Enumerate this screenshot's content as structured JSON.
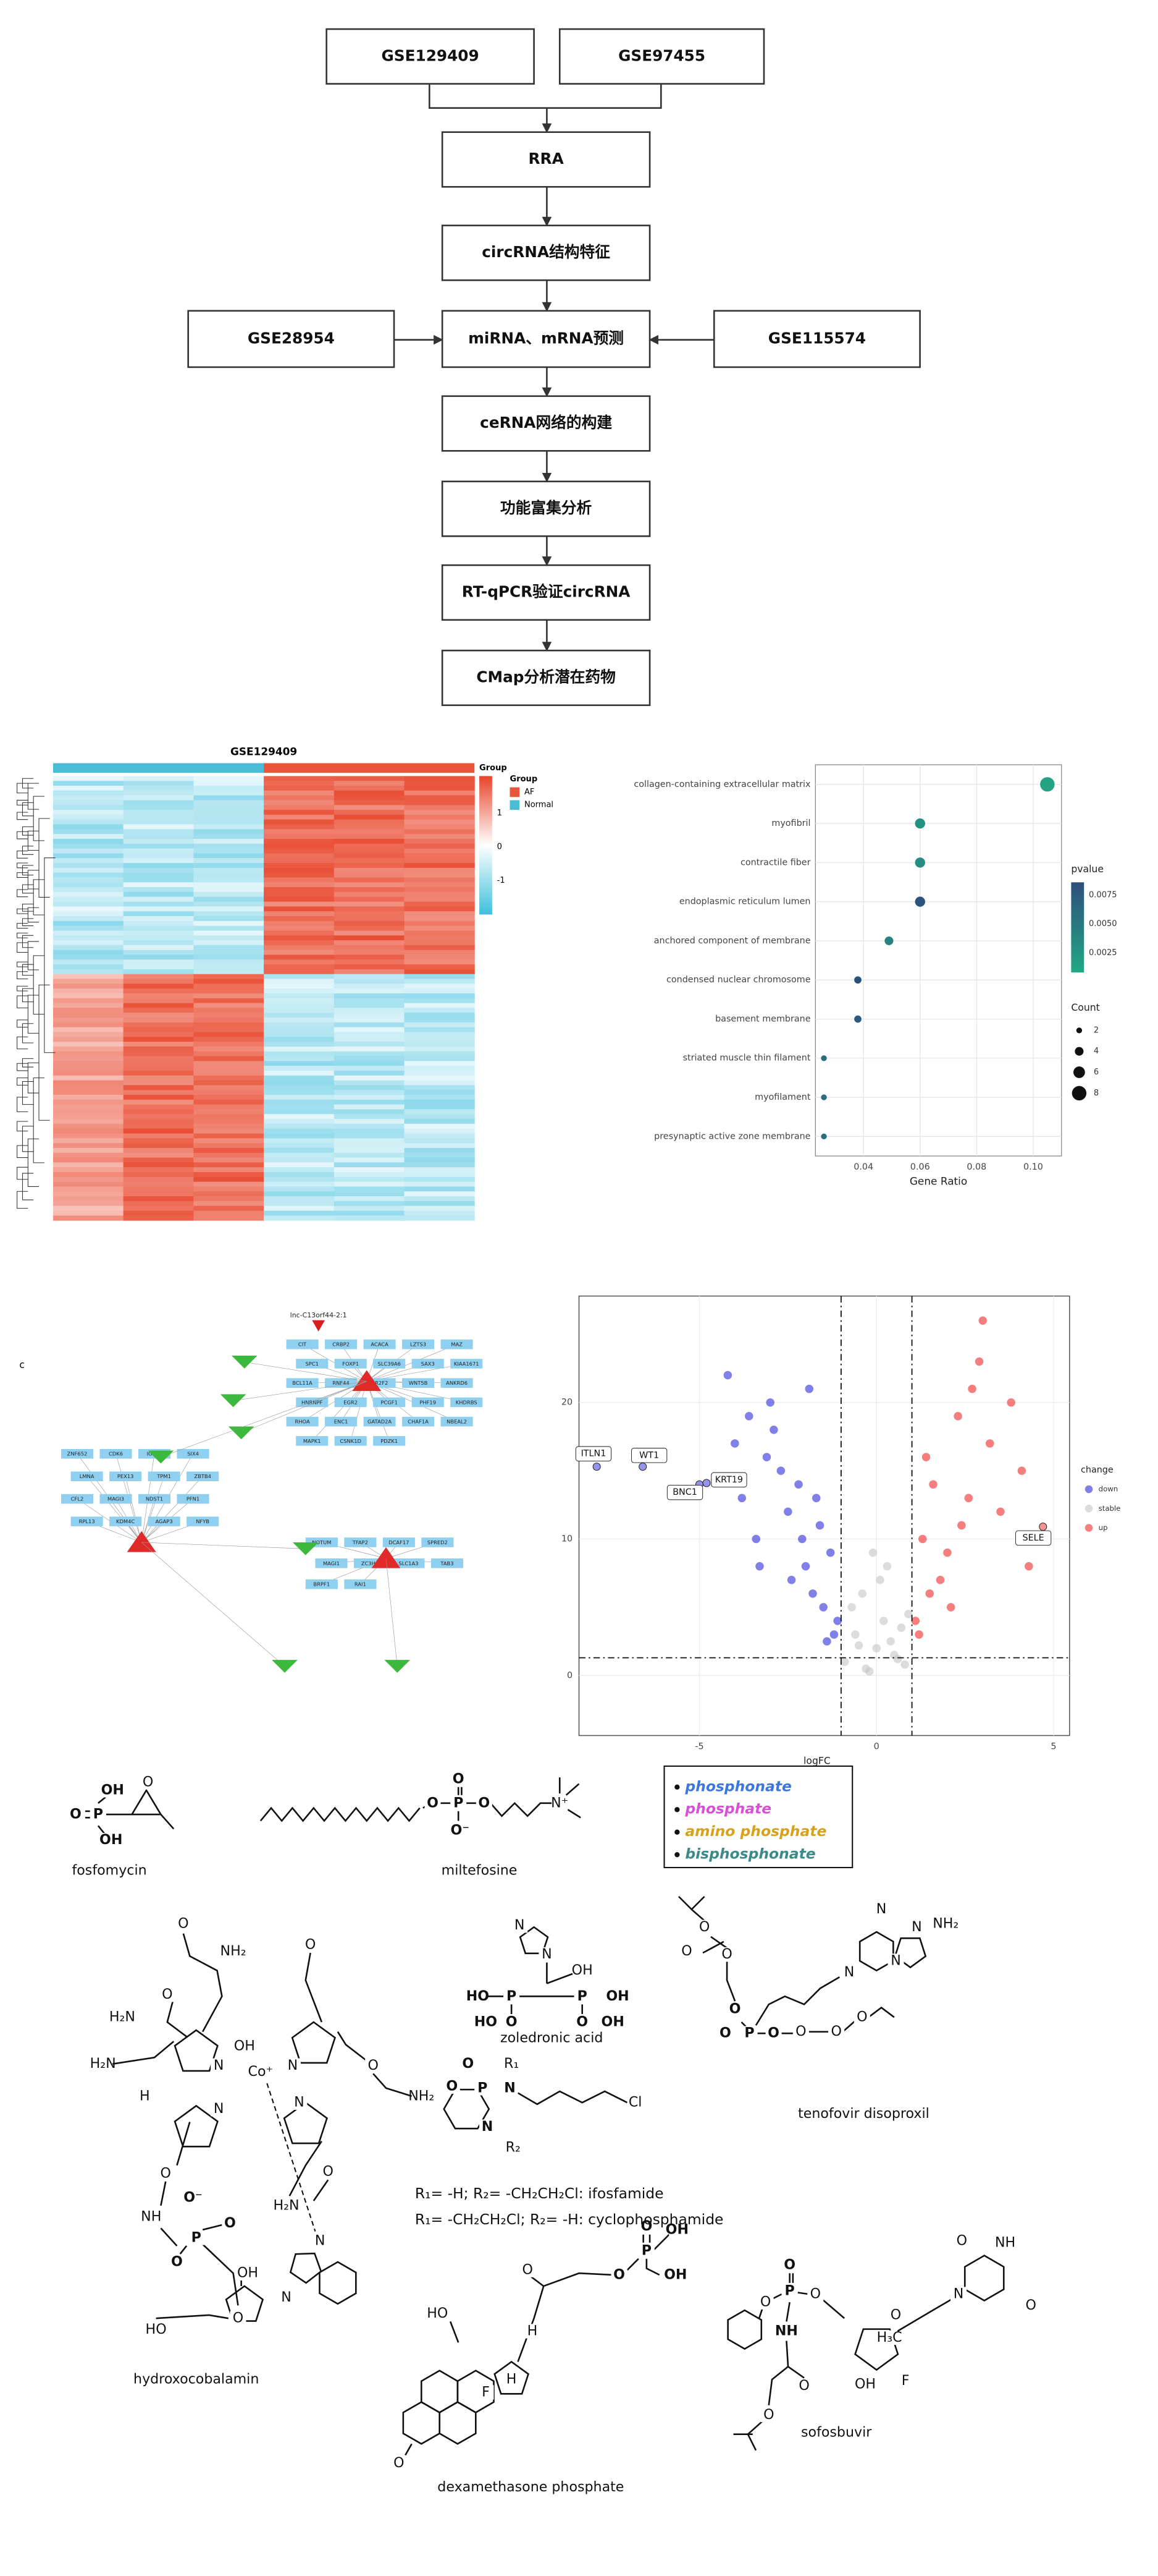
{
  "flowchart": {
    "nodes": [
      "GSE129409",
      "GSE97455",
      "RRA",
      "circRNA结构特征",
      "GSE28954",
      "miRNA、mRNA预测",
      "GSE115574",
      "ceRNA网络的构建",
      "功能富集分析",
      "RT-qPCR验证circRNA",
      "CMap分析潜在药物"
    ]
  },
  "heatmap": {
    "title": "GSE129409",
    "annotation_label": "Group",
    "legend_title": "Group",
    "groups": [
      {
        "name": "AF",
        "color": "#e8553a"
      },
      {
        "name": "Normal",
        "color": "#4bbcd6"
      }
    ],
    "scale_ticks": [
      1,
      0,
      -1
    ],
    "scale_lim": [
      -2,
      2.1
    ]
  },
  "chart_data": [
    {
      "type": "dot",
      "categories": [
        "collagen-containing extracellular matrix",
        "myofibril",
        "contractile fiber",
        "endoplasmic reticulum lumen",
        "anchored component of membrane",
        "condensed nuclear chromosome",
        "basement membrane",
        "striated muscle thin filament",
        "myofilament",
        "presynaptic active zone membrane"
      ],
      "values": [
        0.105,
        0.06,
        0.06,
        0.06,
        0.049,
        0.038,
        0.038,
        0.026,
        0.026,
        0.026
      ],
      "counts": [
        8,
        5,
        5,
        5,
        4,
        3,
        3,
        2,
        2,
        2
      ],
      "pvalues": [
        0.0012,
        0.0028,
        0.0032,
        0.0082,
        0.004,
        0.0085,
        0.0078,
        0.006,
        0.006,
        0.006
      ],
      "xlim": [
        0.023,
        0.11
      ],
      "xticks": [
        0.04,
        0.06,
        0.08,
        {
          "value": 0.1,
          "label": "0.10"
        }
      ],
      "x_label": "Gene Ratio",
      "grid": true,
      "color_legend_title": "pvalue",
      "color_ticks": [
        0.0075,
        {
          "value": 0.005,
          "label": "0.0050"
        },
        0.0025
      ],
      "pvalue_lim": [
        0.0008,
        0.0086
      ],
      "color_low": "#22a884",
      "color_high": "#2c4f7c",
      "size_legend_title": "Count",
      "size_ticks": [
        2,
        4,
        6,
        8
      ]
    },
    {
      "type": "scatter",
      "x_label": "logFC",
      "legend_title": "change",
      "xlim": [
        -8.4,
        5.45
      ],
      "xticks": [
        -5,
        0,
        5
      ],
      "ylim": [
        -4.4,
        27.8
      ],
      "yticks": [
        0,
        10,
        20
      ],
      "grid": true,
      "vlines": [
        -1,
        1
      ],
      "hline": 1.3,
      "series": [
        {
          "name": "down",
          "color": "#2b2bd9",
          "x": [
            -1.2,
            -1.5,
            -2.0,
            -2.5,
            -3.1,
            -3.6,
            -4.2,
            -1.3,
            -1.8,
            -2.2,
            -2.9,
            -3.4,
            -1.1,
            -1.6,
            -2.4,
            -3.0,
            -4.0,
            -3.8,
            -2.7,
            -1.9,
            -1.4,
            -2.1,
            -1.7,
            -3.3
          ],
          "values": [
            3,
            5,
            8,
            12,
            16,
            19,
            22,
            9,
            6,
            14,
            18,
            10,
            4,
            11,
            7,
            20,
            17,
            13,
            15,
            21,
            2.5,
            10,
            13,
            8
          ]
        },
        {
          "name": "stable",
          "color": "#c4c4c4",
          "x": [
            -0.9,
            -0.6,
            -0.3,
            0,
            0.2,
            0.5,
            0.8,
            -0.7,
            -0.4,
            0.1,
            0.4,
            0.7,
            -0.2,
            0.3,
            0.6,
            -0.5,
            0.9,
            -0.1
          ],
          "values": [
            1,
            3,
            0.5,
            2,
            4,
            1.5,
            0.8,
            5,
            6,
            7,
            2.5,
            3.5,
            0.3,
            8,
            1.2,
            2.2,
            4.5,
            9
          ]
        },
        {
          "name": "up",
          "color": "#ee2a2a",
          "x": [
            1.2,
            1.5,
            2.0,
            2.6,
            3.2,
            3.8,
            4.1,
            1.3,
            1.8,
            2.3,
            2.9,
            3.5,
            1.1,
            1.6,
            2.4,
            3.0,
            4.3,
            1.4,
            2.1,
            2.7
          ],
          "values": [
            3,
            6,
            9,
            13,
            17,
            20,
            15,
            10,
            7,
            19,
            23,
            12,
            4,
            14,
            11,
            26,
            8,
            16,
            5,
            21
          ]
        }
      ],
      "labels": [
        {
          "label": "ITLN1",
          "x": -7.9,
          "y": 15.3
        },
        {
          "label": "WT1",
          "x": -6.6,
          "y": 15.3
        },
        {
          "label": "BNC1",
          "x": -5.0,
          "y": 14.0
        },
        {
          "label": "KRT19",
          "x": -4.8,
          "y": 14.1
        },
        {
          "label": "SELE",
          "x": 4.7,
          "y": 10.9
        }
      ]
    }
  ],
  "network": {
    "panel_label": "c",
    "top_label": "lnc-C13orf44-2:1",
    "clusters": [
      {
        "genes": [
          "CIT",
          "CRBP2",
          "ACACA",
          "LZTS3",
          "MAZ",
          "SPC1",
          "FOXP1",
          "SLC39A6",
          "SAX3",
          "KIAA1671",
          "BCL11A",
          "RNF44",
          "NR2F2",
          "WNT5B",
          "ANKRD6",
          "HNRNPF",
          "EGR2",
          "PCGF1",
          "PHF19",
          "KHDRBS",
          "RHOA",
          "ENC1",
          "GATAD2A",
          "CHAF1A",
          "NBEAL2",
          "MAPK1",
          "CSNK1D",
          "PDZK1"
        ]
      },
      {
        "genes": [
          "ZNF652",
          "CDK6",
          "IGF1R",
          "SIX4",
          "LMNA",
          "PEX13",
          "TPM1",
          "ZBTB4",
          "CFL2",
          "MAGI3",
          "NDST1",
          "PFN1",
          "RPL13",
          "KDM4C",
          "AGAP3",
          "NFYB"
        ]
      },
      {
        "genes": [
          "NOTUM",
          "TFAP2",
          "DCAF17",
          "SPRED2",
          "MAGI1",
          "ZC3H4",
          "SLC1A3",
          "TAB3",
          "BRPF1",
          "RAI1"
        ]
      }
    ]
  },
  "chemistry": {
    "legend": [
      {
        "text": "phosphonate",
        "color": "#3a78e0"
      },
      {
        "text": "phosphate",
        "color": "#d94fd9"
      },
      {
        "text": "amino phosphate",
        "color": "#d6a21a"
      },
      {
        "text": "bisphosphonate",
        "color": "#3b8a8a"
      }
    ],
    "compounds": [
      {
        "name": "fosfomycin",
        "atoms": [
          {
            "text": "OH",
            "color": "#3a78e0"
          },
          {
            "text": "P",
            "color": "#3a78e0"
          },
          {
            "text": "O",
            "color": "#3a78e0"
          },
          {
            "text": "OH",
            "color": "#3a78e0"
          },
          "O"
        ]
      },
      {
        "name": "miltefosine",
        "atoms": [
          {
            "text": "O",
            "color": "#d94fd9"
          },
          {
            "text": "P",
            "color": "#d94fd9"
          },
          {
            "text": "O",
            "color": "#d94fd9"
          },
          {
            "text": "O⁻",
            "color": "#d94fd9"
          },
          {
            "text": "O",
            "color": "#d94fd9"
          },
          "N⁺"
        ]
      },
      {
        "name": "zoledronic acid",
        "atoms": [
          "N",
          "N",
          "OH",
          {
            "text": "HO",
            "color": "#3b8a8a"
          },
          {
            "text": "P",
            "color": "#3b8a8a"
          },
          {
            "text": "HO",
            "color": "#3b8a8a"
          },
          {
            "text": "O",
            "color": "#3b8a8a"
          },
          {
            "text": "P",
            "color": "#3b8a8a"
          },
          {
            "text": "OH",
            "color": "#3b8a8a"
          },
          {
            "text": "O",
            "color": "#3b8a8a"
          },
          {
            "text": "OH",
            "color": "#3b8a8a"
          }
        ]
      },
      {
        "name": "tenofovir disoproxil",
        "atoms": [
          "O",
          "O",
          "O",
          {
            "text": "O",
            "color": "#3a78e0"
          },
          {
            "text": "P",
            "color": "#3a78e0"
          },
          {
            "text": "O",
            "color": "#3a78e0"
          },
          {
            "text": "O",
            "color": "#3a78e0"
          },
          "O",
          "O",
          "O",
          "N",
          "N",
          "N",
          "N",
          "NH₂"
        ]
      },
      {
        "atoms": [
          {
            "text": "O",
            "color": "#d6a21a"
          },
          {
            "text": "P",
            "color": "#d6a21a"
          },
          {
            "text": "O",
            "color": "#d6a21a"
          },
          {
            "text": "N",
            "color": "#d6a21a"
          },
          {
            "text": "N",
            "color": "#d6a21a"
          },
          "R₁",
          "R₂",
          "Cl"
        ]
      },
      {
        "name": "hydroxocobalamin",
        "atoms": [
          "O",
          "NH₂",
          "O",
          "H₂N",
          "O",
          "H₂N",
          "H",
          "OH",
          "Co⁺",
          "N",
          "N",
          "N",
          "N",
          "NH₂",
          "O",
          "O",
          "NH",
          "H₂N",
          "O",
          {
            "text": "P",
            "color": "#d94fd9"
          },
          {
            "text": "O",
            "color": "#d94fd9"
          },
          {
            "text": "O",
            "color": "#d94fd9"
          },
          {
            "text": "O⁻",
            "color": "#d94fd9"
          },
          "OH",
          "HO",
          "O",
          "N",
          "N"
        ]
      },
      {
        "name": "dexamethasone phosphate",
        "atoms": [
          "HO",
          "F",
          "H",
          "H",
          "O",
          "O",
          {
            "text": "O",
            "color": "#d94fd9"
          },
          {
            "text": "P",
            "color": "#d94fd9"
          },
          {
            "text": "O",
            "color": "#d94fd9"
          },
          {
            "text": "OH",
            "color": "#d94fd9"
          },
          {
            "text": "OH",
            "color": "#d94fd9"
          }
        ]
      },
      {
        "name": "sofosbuvir",
        "atoms": [
          "O",
          {
            "text": "P",
            "color": "#d6a21a"
          },
          {
            "text": "O",
            "color": "#d6a21a"
          },
          {
            "text": "NH",
            "color": "#d6a21a"
          },
          "O",
          "O",
          "H₃C",
          "OH",
          "F",
          "N",
          "NH",
          "O",
          "O",
          "O",
          "O"
        ]
      }
    ],
    "r_groups": [
      "R₁= -H; R₂= -CH₂CH₂Cl: ifosfamide",
      "R₁= -CH₂CH₂Cl; R₂= -H: cyclophosphamide"
    ]
  }
}
